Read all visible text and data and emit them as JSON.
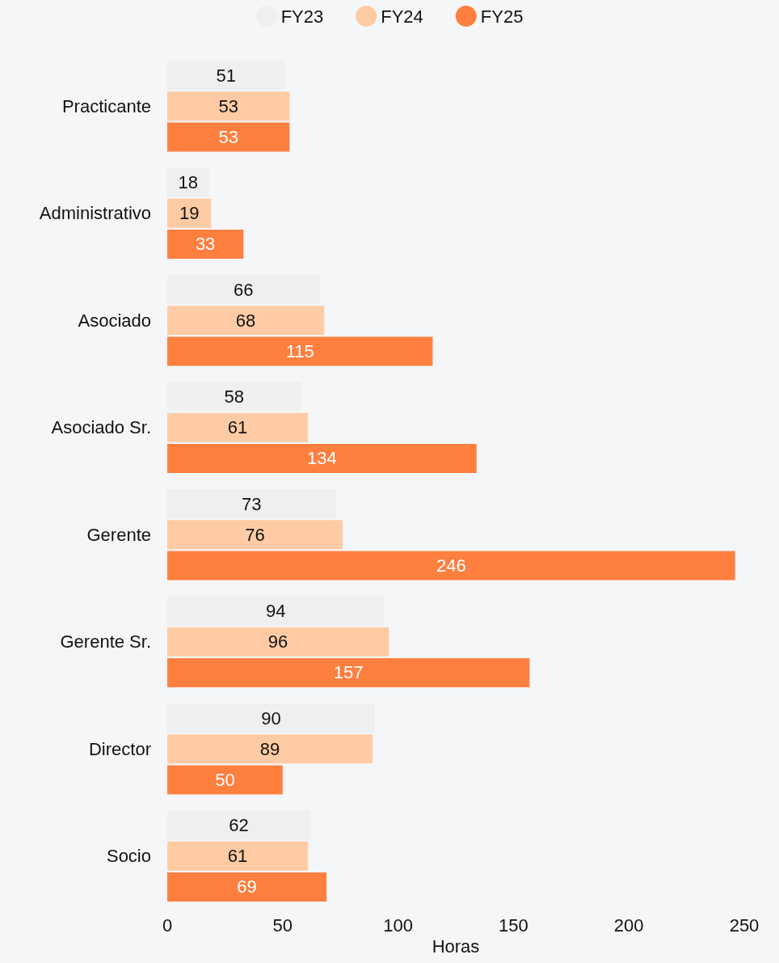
{
  "chart_data": {
    "type": "bar",
    "orientation": "horizontal",
    "xlabel": "Horas",
    "categories": [
      "Practicante",
      "Administrativo",
      "Asociado",
      "Asociado Sr.",
      "Gerente",
      "Gerente Sr.",
      "Director",
      "Socio"
    ],
    "series": [
      {
        "name": "FY23",
        "color": "#eeeff1",
        "values": [
          51,
          18,
          66,
          58,
          73,
          94,
          90,
          62
        ]
      },
      {
        "name": "FY24",
        "color": "#ffcba4",
        "values": [
          53,
          19,
          68,
          61,
          76,
          96,
          89,
          61
        ]
      },
      {
        "name": "FY25",
        "color": "#ff7f3f",
        "values": [
          53,
          33,
          115,
          134,
          246,
          157,
          50,
          69
        ]
      }
    ],
    "xlim": [
      0,
      250
    ],
    "xticks": [
      0,
      50,
      100,
      150,
      200,
      250
    ],
    "grid": false,
    "legend": "top",
    "data_labels": true
  }
}
